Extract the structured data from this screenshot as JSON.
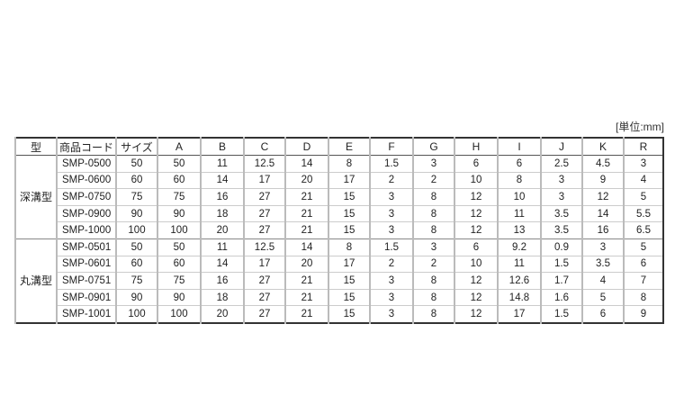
{
  "unit_label": "[単位:mm]",
  "headers": [
    "型",
    "商品コード",
    "サイズ",
    "A",
    "B",
    "C",
    "D",
    "E",
    "F",
    "G",
    "H",
    "I",
    "J",
    "K",
    "R"
  ],
  "groups": [
    {
      "name": "深溝型",
      "rows": [
        [
          "SMP-0500",
          "50",
          "50",
          "11",
          "12.5",
          "14",
          "8",
          "1.5",
          "3",
          "6",
          "6",
          "2.5",
          "4.5",
          "3"
        ],
        [
          "SMP-0600",
          "60",
          "60",
          "14",
          "17",
          "20",
          "17",
          "2",
          "2",
          "10",
          "8",
          "3",
          "9",
          "4"
        ],
        [
          "SMP-0750",
          "75",
          "75",
          "16",
          "27",
          "21",
          "15",
          "3",
          "8",
          "12",
          "10",
          "3",
          "12",
          "5"
        ],
        [
          "SMP-0900",
          "90",
          "90",
          "18",
          "27",
          "21",
          "15",
          "3",
          "8",
          "12",
          "11",
          "3.5",
          "14",
          "5.5"
        ],
        [
          "SMP-1000",
          "100",
          "100",
          "20",
          "27",
          "21",
          "15",
          "3",
          "8",
          "12",
          "13",
          "3.5",
          "16",
          "6.5"
        ]
      ]
    },
    {
      "name": "丸溝型",
      "rows": [
        [
          "SMP-0501",
          "50",
          "50",
          "11",
          "12.5",
          "14",
          "8",
          "1.5",
          "3",
          "6",
          "9.2",
          "0.9",
          "3",
          "5"
        ],
        [
          "SMP-0601",
          "60",
          "60",
          "14",
          "17",
          "20",
          "17",
          "2",
          "2",
          "10",
          "11",
          "1.5",
          "3.5",
          "6"
        ],
        [
          "SMP-0751",
          "75",
          "75",
          "16",
          "27",
          "21",
          "15",
          "3",
          "8",
          "12",
          "12.6",
          "1.7",
          "4",
          "7"
        ],
        [
          "SMP-0901",
          "90",
          "90",
          "18",
          "27",
          "21",
          "15",
          "3",
          "8",
          "12",
          "14.8",
          "1.6",
          "5",
          "8"
        ],
        [
          "SMP-1001",
          "100",
          "100",
          "20",
          "27",
          "21",
          "15",
          "3",
          "8",
          "12",
          "17",
          "1.5",
          "6",
          "9"
        ]
      ]
    }
  ]
}
